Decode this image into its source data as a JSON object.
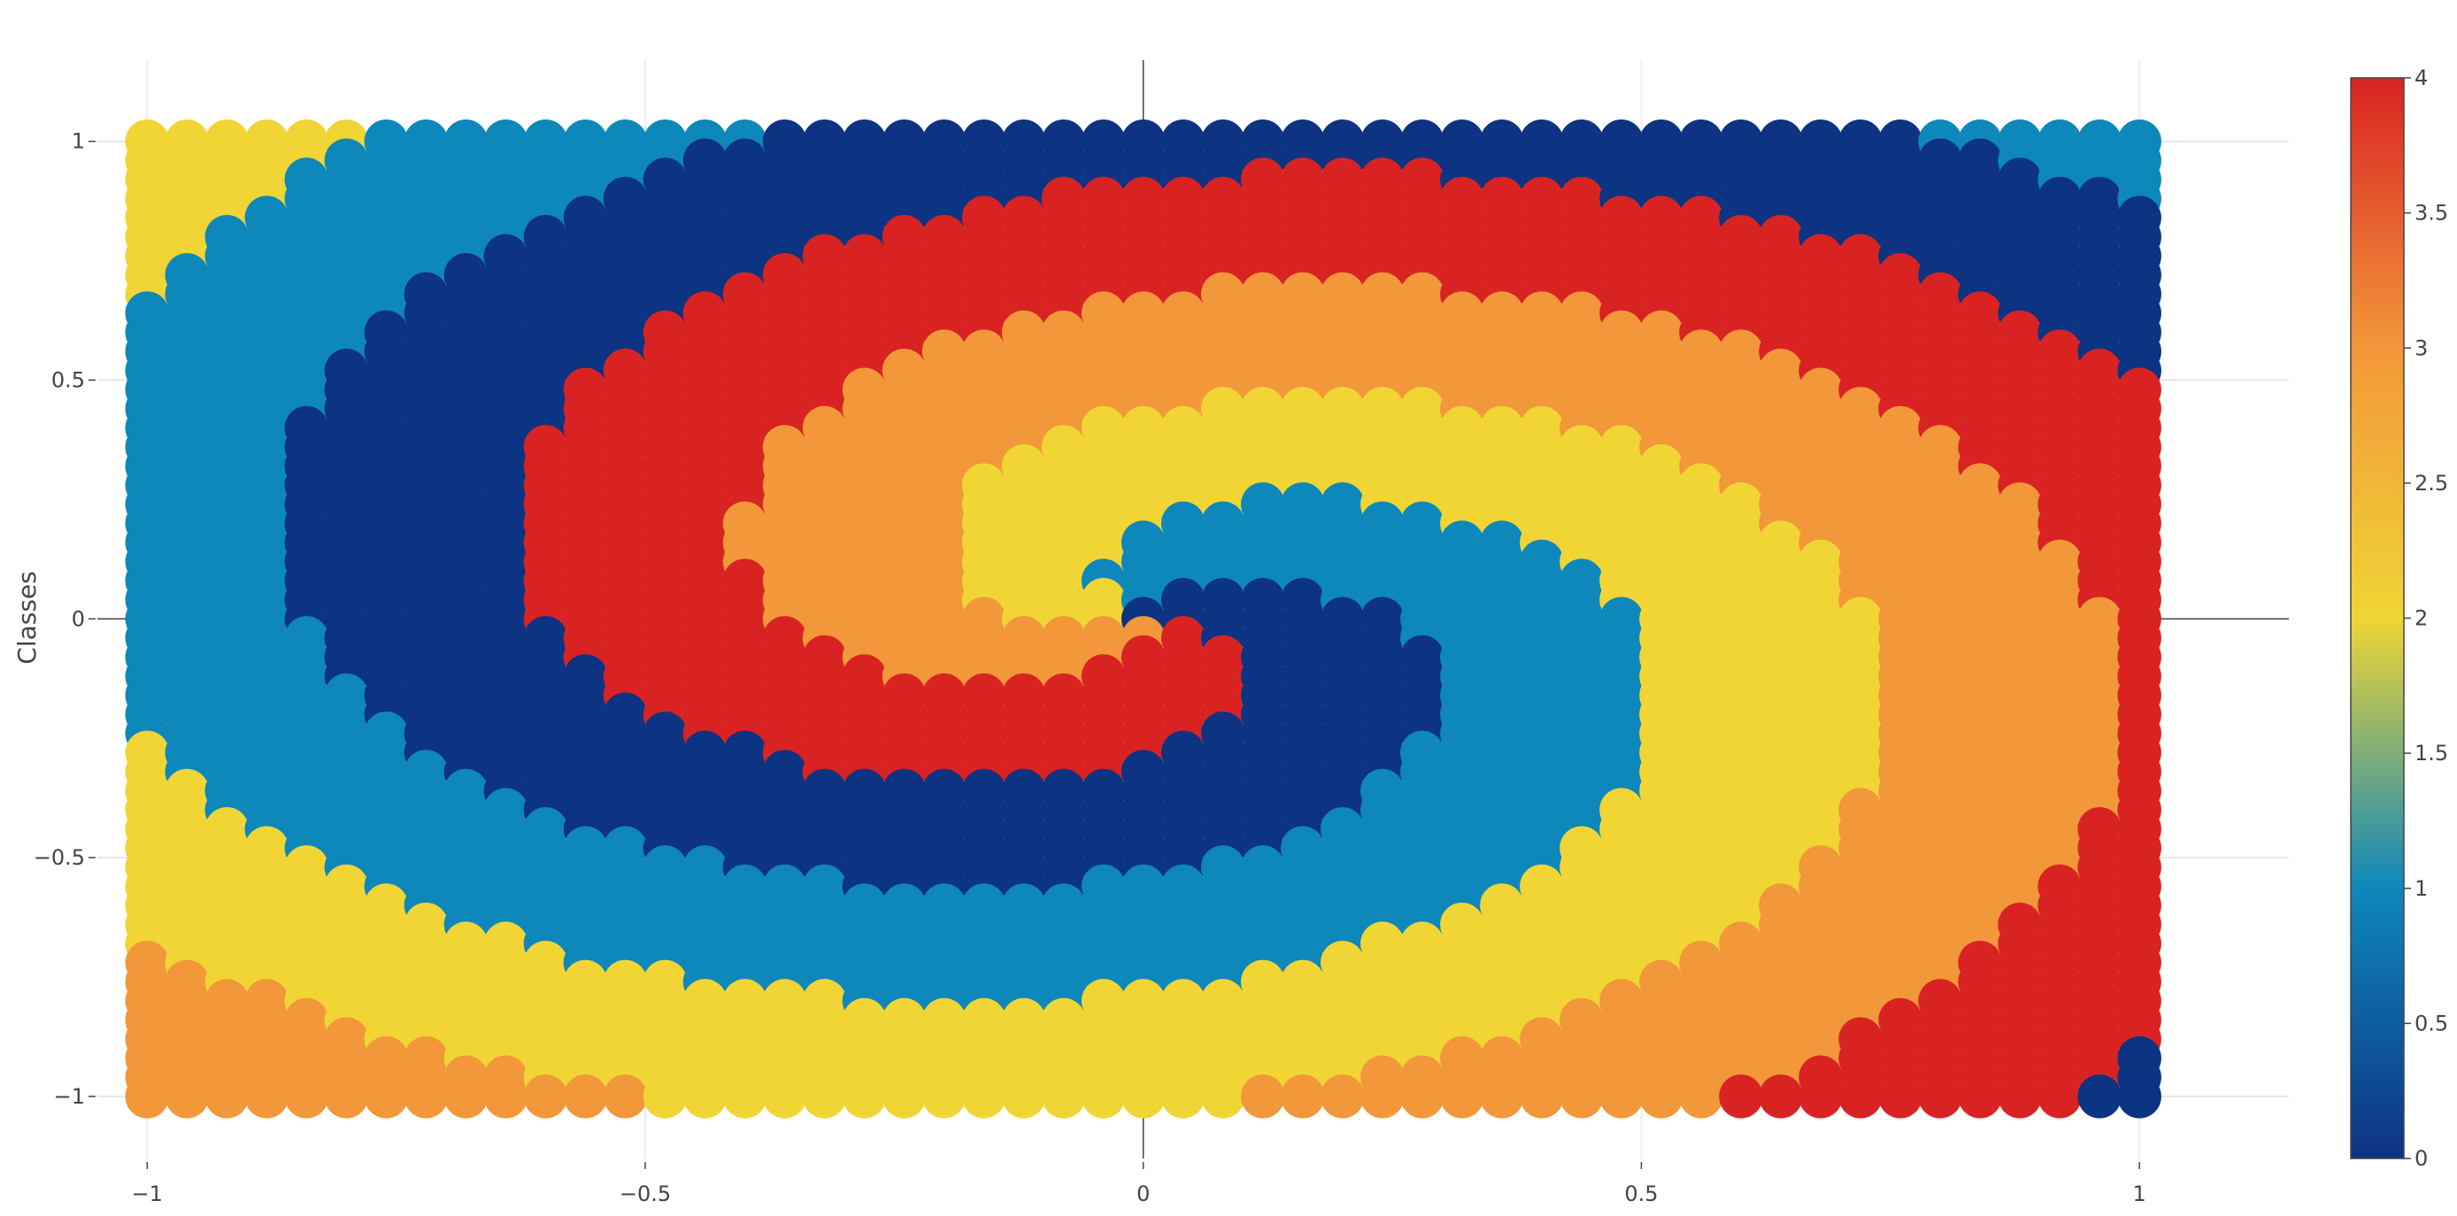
{
  "chart_data": {
    "type": "scatter",
    "title": "",
    "xlabel": "",
    "ylabel": "Classes",
    "xlim": [
      -1.05,
      1.15
    ],
    "ylim": [
      -1.13,
      1.17
    ],
    "x_ticks": [
      -1,
      -0.5,
      0,
      0.5,
      1
    ],
    "x_tick_labels": [
      "−1",
      "−0.5",
      "0",
      "0.5",
      "1"
    ],
    "y_ticks": [
      -1,
      -0.5,
      0,
      0.5,
      1
    ],
    "y_tick_labels": [
      "−1",
      "−0.5",
      "0",
      "0.5",
      "1"
    ],
    "grid": true,
    "legend": "colorbar-right",
    "grid_x_range": [
      -1,
      1
    ],
    "grid_y_range": [
      -1,
      1
    ],
    "grid_step": 0.04,
    "pattern": "five-arm spiral of class labels 0–4 over the sampled grid",
    "colorbar": {
      "min": 0,
      "max": 4,
      "ticks": [
        0,
        0.5,
        1,
        1.5,
        2,
        2.5,
        3,
        3.5,
        4
      ],
      "tick_labels": [
        "0",
        "0.5",
        "1",
        "1.5",
        "2",
        "2.5",
        "3",
        "3.5",
        "4"
      ],
      "colorscale": [
        [
          0.0,
          "#0d3383"
        ],
        [
          0.25,
          "#0e87bb"
        ],
        [
          0.5,
          "#f0d535"
        ],
        [
          0.75,
          "#f2973a"
        ],
        [
          1.0,
          "#d92322"
        ]
      ]
    },
    "class_colors": {
      "0": "#0d3383",
      "1": "#0e87bb",
      "2": "#f0d535",
      "3": "#f2973a",
      "4": "#d92322"
    }
  }
}
